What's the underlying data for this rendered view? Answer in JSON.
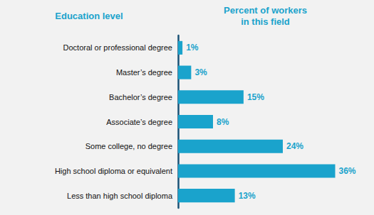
{
  "chart_data": {
    "type": "bar",
    "orientation": "horizontal",
    "ylabel": "Education level",
    "xlabel": "Percent of workers\nin this field",
    "categories": [
      "Doctoral or professional degree",
      "Master’s degree",
      "Bachelor’s degree",
      "Associate’s degree",
      "Some college, no degree",
      "High school diploma or equivalent",
      "Less than high school diploma"
    ],
    "values": [
      1,
      3,
      15,
      8,
      24,
      36,
      13
    ],
    "value_labels": [
      "1%",
      "3%",
      "15%",
      "8%",
      "24%",
      "36%",
      "13%"
    ],
    "color": "#1aa3cc",
    "xlim": [
      0,
      40
    ],
    "data_labels": true,
    "tick_labels": "y",
    "grid": false
  }
}
